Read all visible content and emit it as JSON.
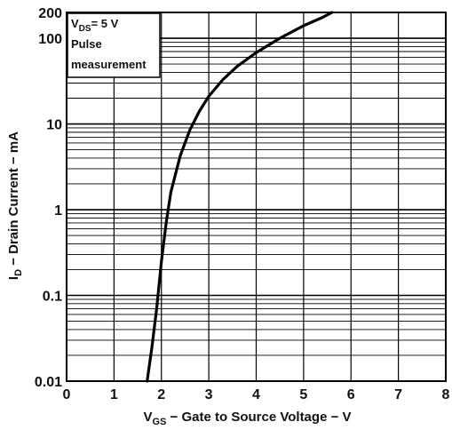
{
  "chart_data": {
    "type": "line",
    "title": "",
    "xlabel": {
      "main": "V",
      "sub": "GS",
      "rest": " − Gate to Source Voltage − V"
    },
    "ylabel": {
      "main": "I",
      "sub": "D",
      "rest": " − Drain Current − mA"
    },
    "xlim": [
      0,
      8
    ],
    "ylim": [
      0.01,
      200
    ],
    "yscale": "log",
    "grid": true,
    "x_ticks": [
      {
        "value": 0,
        "label": "0"
      },
      {
        "value": 1,
        "label": "1"
      },
      {
        "value": 2,
        "label": "2"
      },
      {
        "value": 3,
        "label": "3"
      },
      {
        "value": 4,
        "label": "4"
      },
      {
        "value": 5,
        "label": "5"
      },
      {
        "value": 6,
        "label": "6"
      },
      {
        "value": 7,
        "label": "7"
      },
      {
        "value": 8,
        "label": "8"
      }
    ],
    "y_ticks": [
      {
        "value": 0.01,
        "label": "0.01"
      },
      {
        "value": 0.1,
        "label": "0.1"
      },
      {
        "value": 1,
        "label": "1"
      },
      {
        "value": 10,
        "label": "10"
      },
      {
        "value": 100,
        "label": "100"
      },
      {
        "value": 200,
        "label": "200"
      }
    ],
    "annotation": {
      "line1": {
        "main": "V",
        "sub": "DS",
        "rest": "= 5 V"
      },
      "line2": "Pulse",
      "line3": "measurement"
    },
    "series": [
      {
        "x": [
          1.7,
          1.8,
          1.9,
          2.0,
          2.1,
          2.2,
          2.4,
          2.6,
          2.8,
          3.0,
          3.3,
          3.6,
          4.0,
          4.5,
          5.0,
          5.4,
          5.6
        ],
        "y": [
          0.01,
          0.025,
          0.07,
          0.25,
          0.7,
          1.6,
          4.3,
          8.5,
          14,
          21,
          33,
          47,
          68,
          100,
          140,
          175,
          200
        ]
      }
    ]
  }
}
